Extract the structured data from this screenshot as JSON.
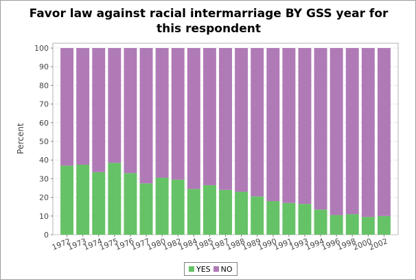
{
  "chart_data": {
    "type": "bar",
    "stacked": true,
    "title": "Favor law against racial intermarriage BY GSS year for this respondent",
    "ylabel": "Percent",
    "xlabel": "",
    "ylim": [
      0,
      100
    ],
    "yticks": [
      0,
      10,
      20,
      30,
      40,
      50,
      60,
      70,
      80,
      90,
      100
    ],
    "grid": true,
    "legend_position": "bottom",
    "categories": [
      "1972",
      "1973",
      "1974",
      "1975",
      "1976",
      "1977",
      "1980",
      "1982",
      "1984",
      "1985",
      "1987",
      "1988",
      "1989",
      "1990",
      "1991",
      "1993",
      "1994",
      "1996",
      "1998",
      "2000",
      "2002"
    ],
    "series": [
      {
        "name": "YES",
        "color": "#66c266",
        "values": [
          37,
          37.5,
          33.5,
          38.5,
          33,
          27.5,
          30.5,
          29.5,
          24.5,
          26.5,
          24,
          23,
          20.5,
          18,
          17,
          16.5,
          13.5,
          10.5,
          11,
          9.5,
          10
        ]
      },
      {
        "name": "NO",
        "color": "#b07ab7",
        "values": [
          63,
          62.5,
          66.5,
          61.5,
          67,
          72.5,
          69.5,
          70.5,
          75.5,
          73.5,
          76,
          77,
          79.5,
          82,
          83,
          83.5,
          86.5,
          89.5,
          89,
          90.5,
          90
        ]
      }
    ]
  }
}
